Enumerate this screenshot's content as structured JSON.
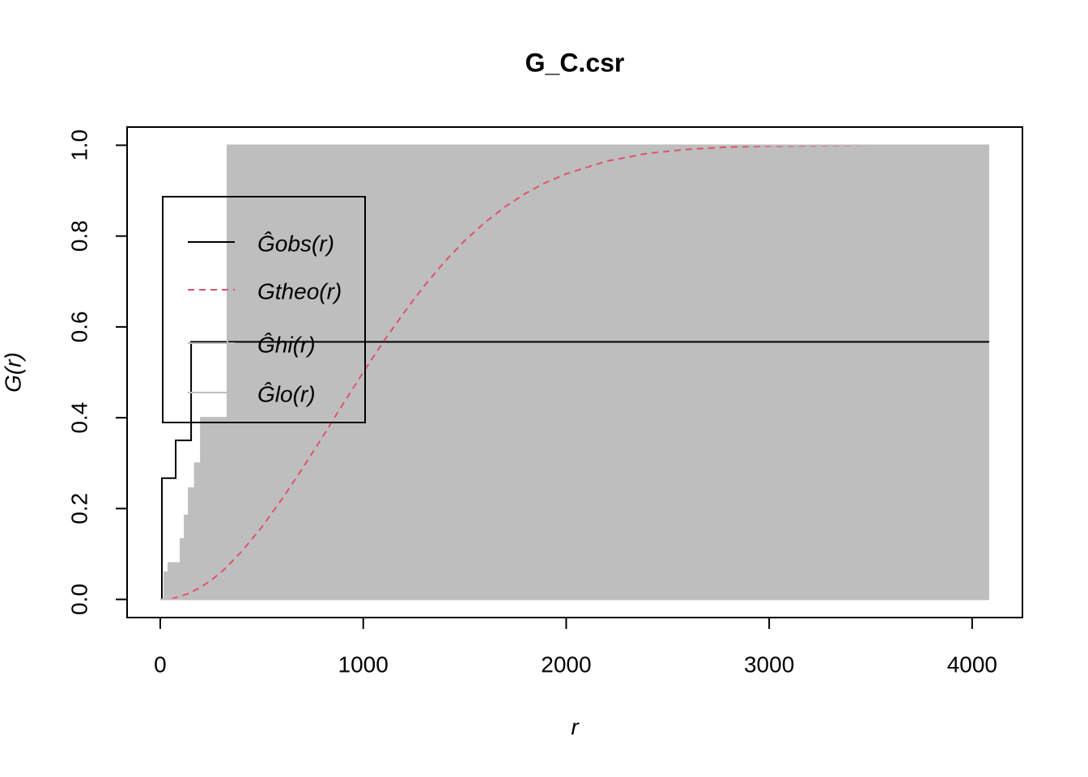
{
  "chart_data": {
    "type": "line",
    "title": "G_C.csr",
    "x_label": "r",
    "y_label": "G(r)",
    "x": [
      0,
      8,
      20,
      40,
      60,
      76,
      100,
      120,
      140,
      152,
      170,
      200,
      250,
      300,
      331,
      400,
      500,
      600,
      700,
      800,
      900,
      1000,
      1100,
      1200,
      1300,
      1400,
      1500,
      1600,
      1700,
      1800,
      1900,
      2000,
      2200,
      2400,
      2600,
      2800,
      3000,
      3300,
      3600,
      4084
    ],
    "series": [
      {
        "name": "Ĝobs(r)",
        "color": "#000000",
        "dash": false,
        "step": true,
        "values": [
          0,
          0.267,
          0.267,
          0.267,
          0.267,
          0.35,
          0.35,
          0.35,
          0.35,
          0.567,
          0.567,
          0.567,
          0.567,
          0.567,
          0.567,
          0.567,
          0.567,
          0.567,
          0.567,
          0.567,
          0.567,
          0.567,
          0.567,
          0.567,
          0.567,
          0.567,
          0.567,
          0.567,
          0.567,
          0.567,
          0.567,
          0.567,
          0.567,
          0.567,
          0.567,
          0.567,
          0.567,
          0.567,
          0.567,
          0.567
        ]
      },
      {
        "name": "Gtheo(r)",
        "color": "#DF536B",
        "dash": true,
        "step": false,
        "values": [
          0,
          0,
          0,
          0.001,
          0.002,
          0.004,
          0.007,
          0.01,
          0.013,
          0.016,
          0.02,
          0.027,
          0.042,
          0.06,
          0.073,
          0.105,
          0.159,
          0.221,
          0.288,
          0.358,
          0.43,
          0.5,
          0.568,
          0.631,
          0.69,
          0.743,
          0.79,
          0.83,
          0.865,
          0.894,
          0.918,
          0.937,
          0.965,
          0.982,
          0.991,
          0.996,
          0.998,
          0.999,
          1,
          1
        ]
      },
      {
        "name": "Ĝhi(r)",
        "color": "#BEBEBE",
        "dash": false,
        "step": true,
        "values": [
          0,
          0,
          0.06,
          0.08,
          0.08,
          0.08,
          0.133,
          0.185,
          0.245,
          0.245,
          0.3,
          0.4,
          0.4,
          0.4,
          1,
          1,
          1,
          1,
          1,
          1,
          1,
          1,
          1,
          1,
          1,
          1,
          1,
          1,
          1,
          1,
          1,
          1,
          1,
          1,
          1,
          1,
          1,
          1,
          1,
          1
        ]
      },
      {
        "name": "Ĝlo(r)",
        "color": "#BEBEBE",
        "dash": false,
        "step": true,
        "values": [
          0,
          0,
          0,
          0,
          0,
          0,
          0,
          0,
          0,
          0,
          0,
          0,
          0,
          0,
          0,
          0,
          0,
          0,
          0,
          0,
          0,
          0,
          0,
          0,
          0,
          0,
          0,
          0,
          0,
          0,
          0,
          0,
          0,
          0,
          0,
          0,
          0,
          0,
          0,
          0
        ]
      }
    ],
    "shade_color": "#BEBEBE",
    "xlim": [
      -163.4,
      4247.8
    ],
    "xticks": [
      0,
      1000,
      2000,
      3000,
      4000
    ],
    "ylim": [
      -0.04,
      1.04
    ],
    "yticks": [
      {
        "value": 0,
        "label": "0.0"
      },
      0.2,
      0.4,
      0.6,
      0.8,
      {
        "value": 1,
        "label": "1.0"
      }
    ],
    "legend": "topleft"
  }
}
